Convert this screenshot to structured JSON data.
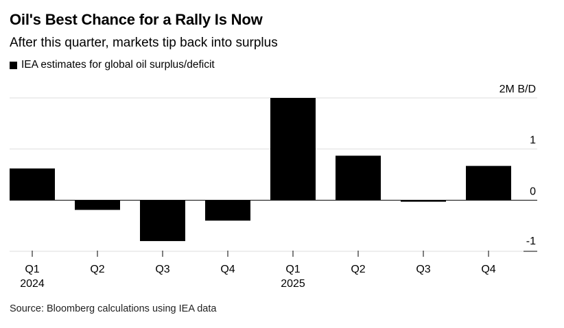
{
  "header": {
    "title": "Oil's Best Chance for a Rally Is Now",
    "subtitle": "After this quarter, markets tip back into surplus"
  },
  "legend": {
    "label": "IEA estimates for global oil surplus/deficit",
    "color": "#000000"
  },
  "footer": {
    "source": "Source: Bloomberg calculations using IEA data"
  },
  "colors": {
    "bar": "#000000",
    "grid": "#dddddd",
    "axis": "#000000",
    "text": "#000000"
  },
  "chart_data": {
    "type": "bar",
    "title": "Oil's Best Chance for a Rally Is Now",
    "subtitle": "After this quarter, markets tip back into surplus",
    "categories": [
      "Q1",
      "Q2",
      "Q3",
      "Q4",
      "Q1",
      "Q2",
      "Q3",
      "Q4"
    ],
    "year_labels": [
      "2024",
      "",
      "",
      "",
      "2025",
      "",
      "",
      ""
    ],
    "series": [
      {
        "name": "IEA estimates for global oil surplus/deficit",
        "values": [
          0.62,
          -0.19,
          -0.8,
          -0.4,
          2.0,
          0.87,
          -0.03,
          0.67
        ]
      }
    ],
    "ylim": [
      -1,
      2
    ],
    "yticks": [
      {
        "value": 2,
        "label": "2M B/D"
      },
      {
        "value": 1,
        "label": "1"
      },
      {
        "value": 0,
        "label": "0"
      },
      {
        "value": -1,
        "label": "-1"
      }
    ],
    "xlabel": "",
    "ylabel": "",
    "grid": true,
    "axis_position": "right"
  }
}
